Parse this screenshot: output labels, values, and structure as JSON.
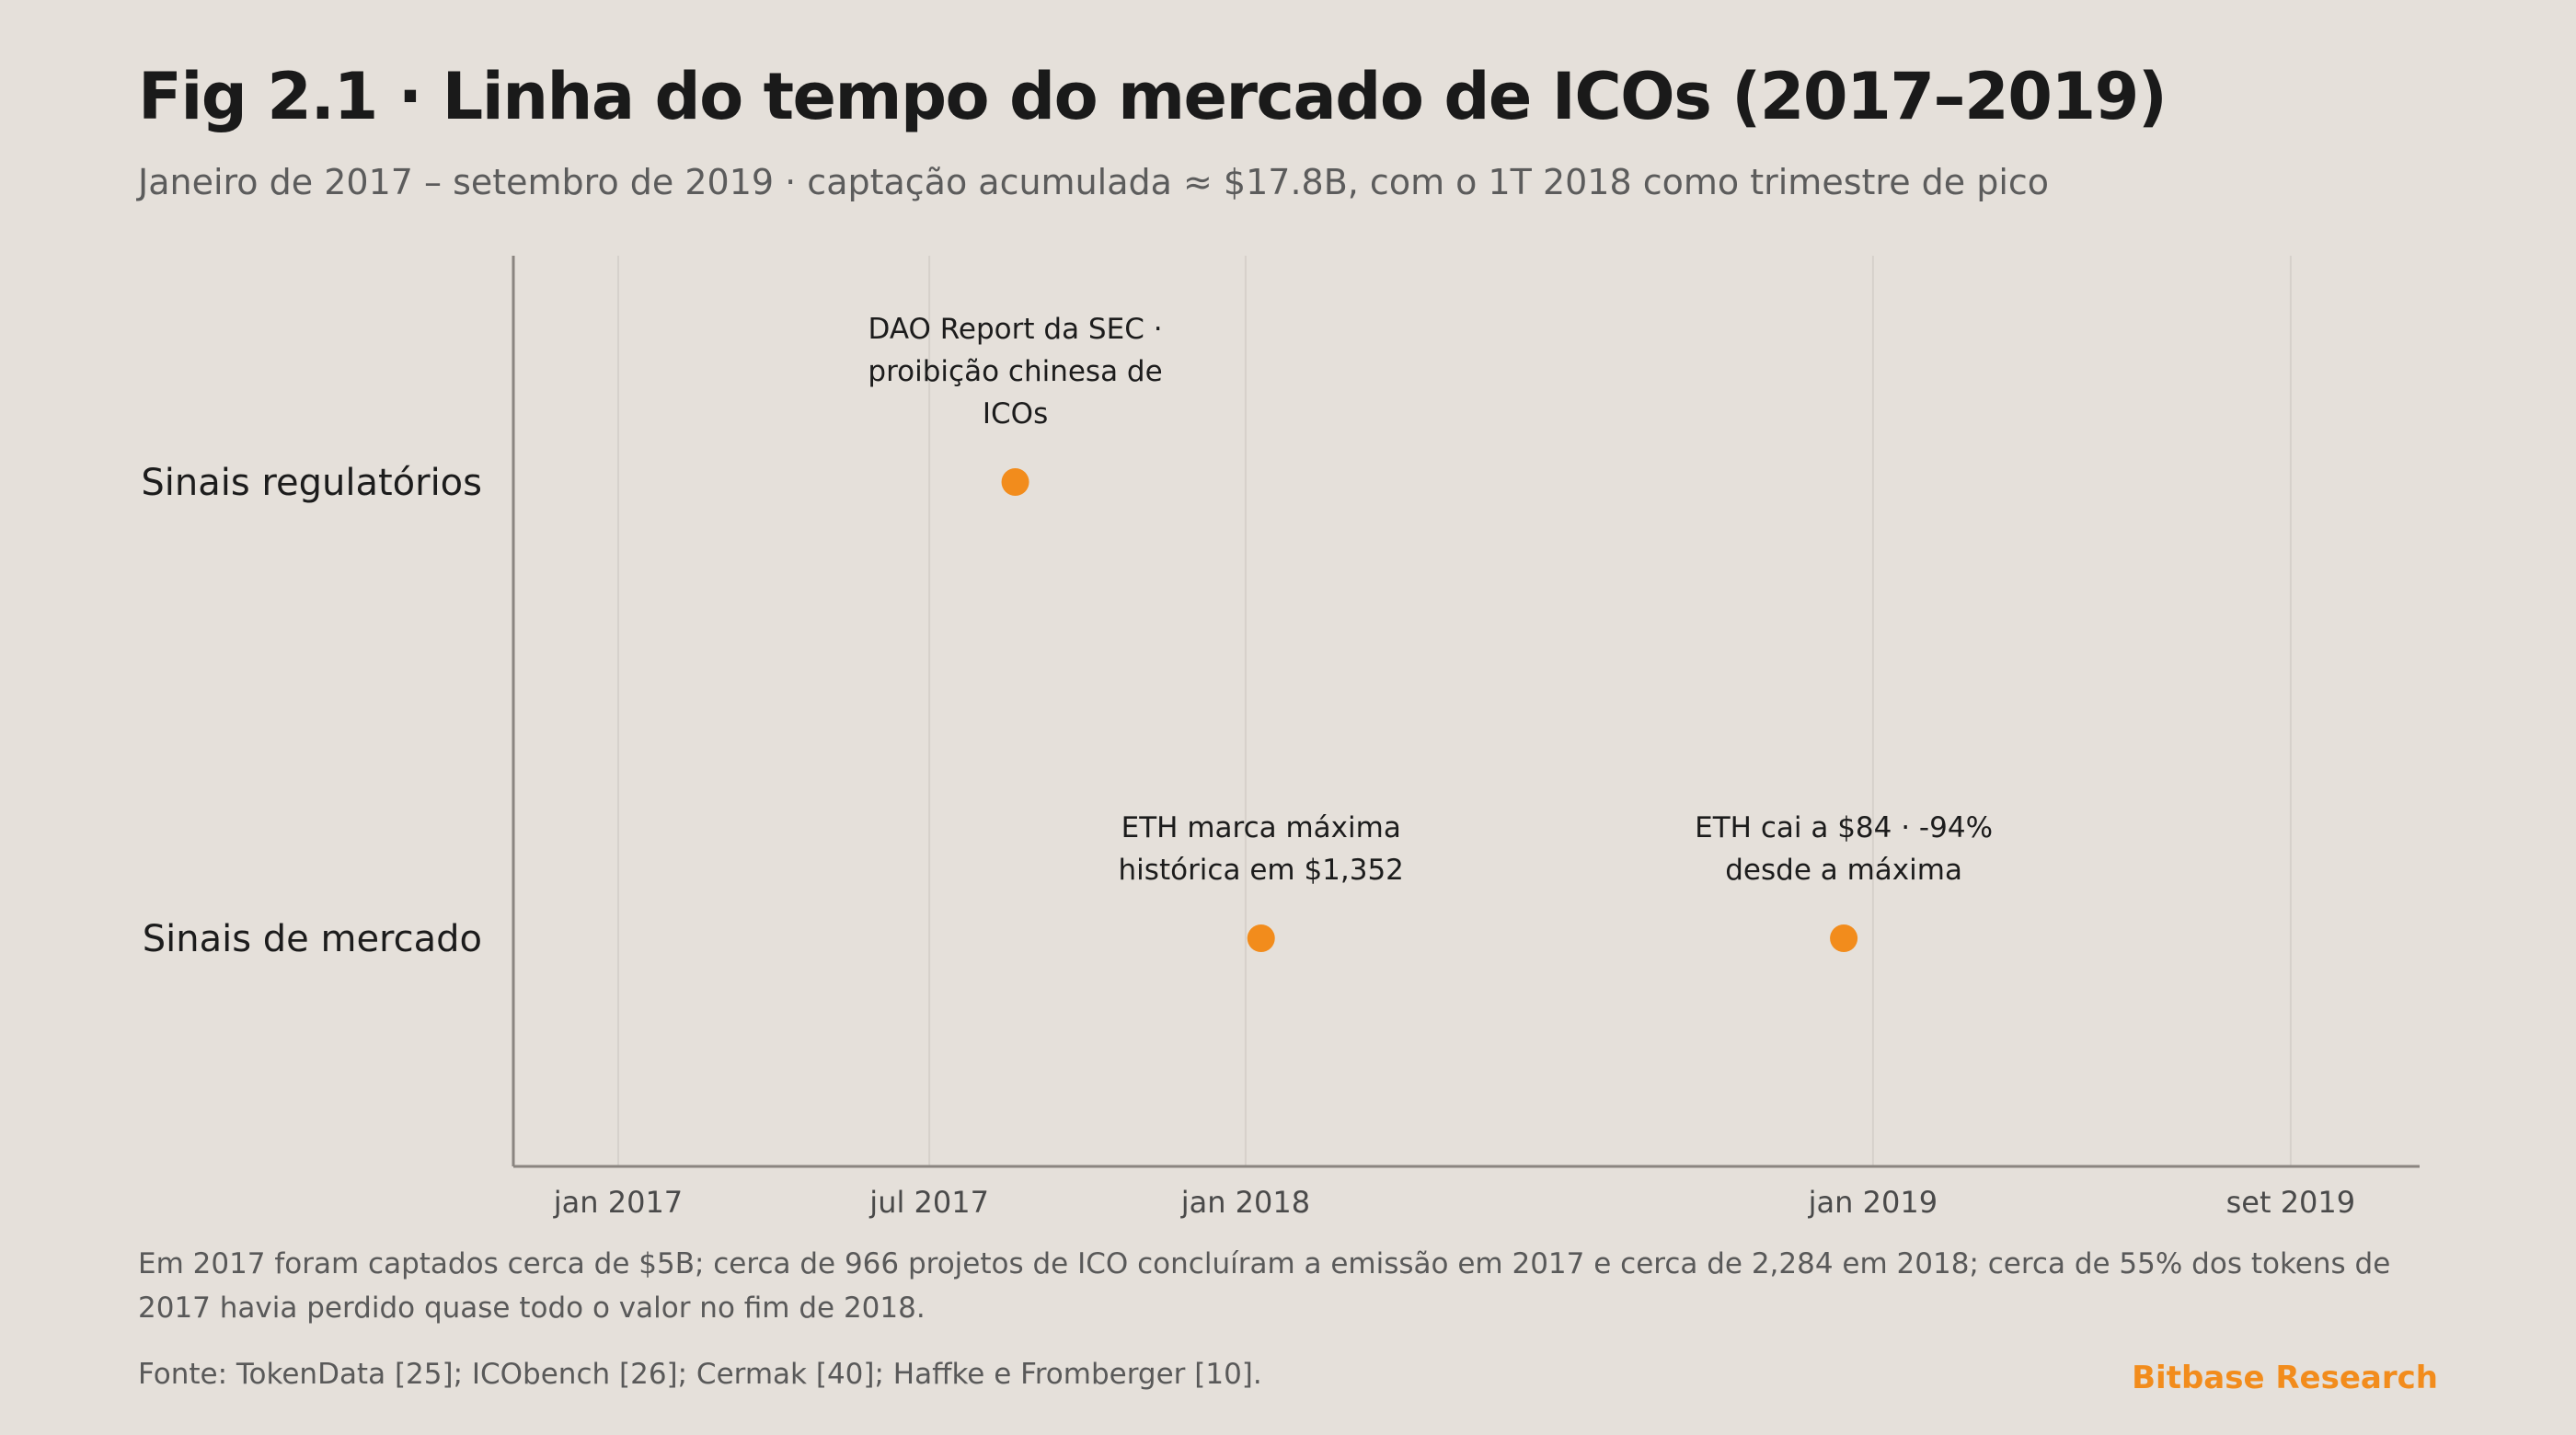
{
  "header": {
    "title": "Fig 2.1 · Linha do tempo do mercado de ICOs (2017–2019)",
    "subtitle": "Janeiro de 2017 – setembro de 2019 · captação acumulada ≈ $17.8B, com o 1T 2018 como trimestre de pico"
  },
  "chart_data": {
    "type": "scatter",
    "x_axis": {
      "type": "date",
      "range": [
        "2016-11-01",
        "2019-11-15"
      ],
      "ticks": [
        {
          "date": "2017-01-01",
          "label": "jan 2017"
        },
        {
          "date": "2017-07-01",
          "label": "jul 2017"
        },
        {
          "date": "2018-01-01",
          "label": "jan 2018"
        },
        {
          "date": "2019-01-01",
          "label": "jan 2019"
        },
        {
          "date": "2019-09-01",
          "label": "set 2019"
        }
      ],
      "grid": true
    },
    "lanes": [
      "Sinais regulatórios",
      "Sinais de mercado"
    ],
    "events": [
      {
        "date": "2017-08-20",
        "lane": "Sinais regulatórios",
        "lines": [
          "DAO Report da SEC ·",
          "proibição chinesa de",
          "ICOs"
        ]
      },
      {
        "date": "2018-01-10",
        "lane": "Sinais de mercado",
        "lines": [
          "ETH marca máxima",
          "histórica em $1,352"
        ]
      },
      {
        "date": "2018-12-15",
        "lane": "Sinais de mercado",
        "lines": [
          "ETH cai a $84 · -94%",
          "desde a máxima"
        ]
      }
    ],
    "colors": {
      "marker": "#f28c1c",
      "grid": "#d6d1cb",
      "axis": "#8a8580"
    }
  },
  "footer": {
    "note": "Em 2017 foram captados cerca de $5B; cerca de 966 projetos de ICO concluíram a emissão em 2017 e cerca de 2,284 em 2018; cerca de 55% dos tokens de 2017 havia perdido quase todo o valor no fim de 2018.",
    "source": "Fonte: TokenData [25]; ICObench [26]; Cermak [40]; Haffke e Fromberger [10].",
    "brand": "Bitbase Research"
  }
}
